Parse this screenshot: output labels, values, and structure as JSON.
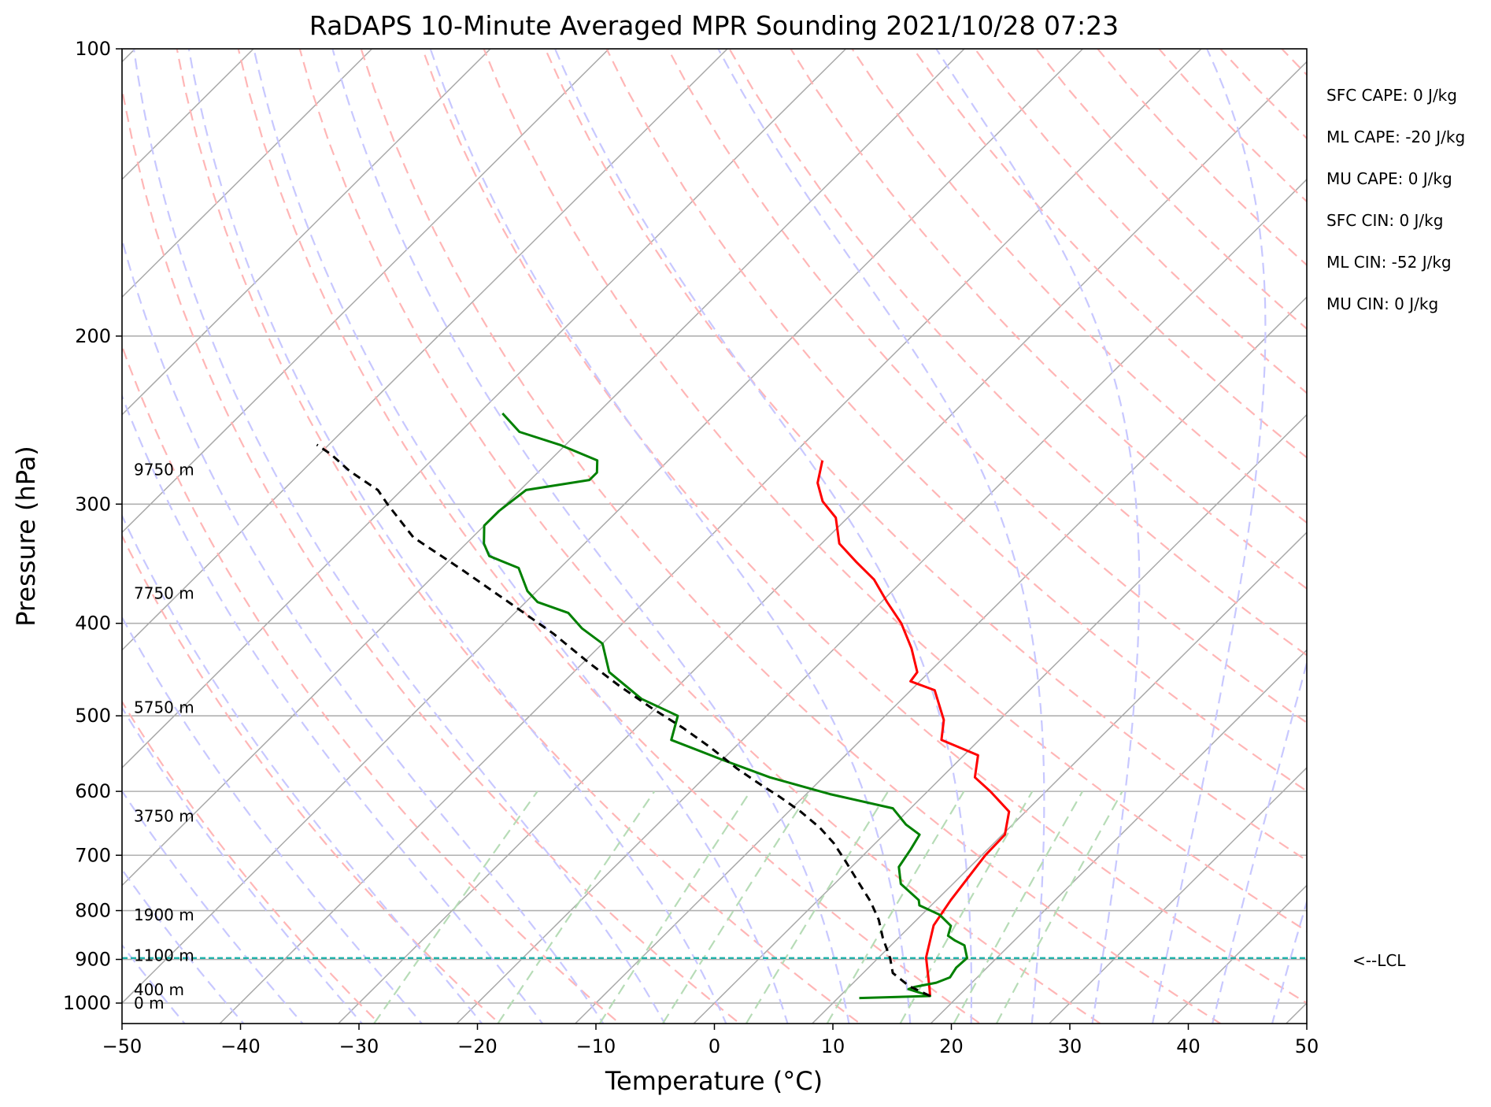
{
  "chart_data": {
    "type": "line",
    "title": "RaDAPS 10-Minute Averaged MPR Sounding 2021/10/28 07:23",
    "xlabel": "Temperature (°C)",
    "ylabel": "Pressure (hPa)",
    "xlim": [
      -50,
      50
    ],
    "ylim": [
      1050,
      100
    ],
    "y_scale": "log",
    "skew": "skew-T",
    "x_ticks": [
      "−50",
      "−40",
      "−30",
      "−20",
      "−10",
      "0",
      "10",
      "20",
      "30",
      "40",
      "50"
    ],
    "x_tick_values": [
      -50,
      -40,
      -30,
      -20,
      -10,
      0,
      10,
      20,
      30,
      40,
      50
    ],
    "y_ticks": [
      "100",
      "200",
      "300",
      "400",
      "500",
      "600",
      "700",
      "800",
      "900",
      "1000"
    ],
    "y_tick_values": [
      100,
      200,
      300,
      400,
      500,
      600,
      700,
      800,
      900,
      1000
    ],
    "grid": true,
    "height_labels": [
      {
        "label": "9750 m",
        "p": 276
      },
      {
        "label": "7750 m",
        "p": 372
      },
      {
        "label": "5750 m",
        "p": 490
      },
      {
        "label": "3750 m",
        "p": 637
      },
      {
        "label": "1900 m",
        "p": 808
      },
      {
        "label": "1100 m",
        "p": 891
      },
      {
        "label": "400 m",
        "p": 968
      },
      {
        "label": "0 m",
        "p": 1000
      }
    ],
    "stats": [
      "SFC CAPE: 0 J/kg",
      "ML CAPE: -20 J/kg",
      "MU CAPE: 0 J/kg",
      "SFC CIN: 0 J/kg",
      "ML CIN: -52 J/kg",
      "MU CIN: 0 J/kg"
    ],
    "lcl": {
      "label": "<--LCL",
      "p": 897
    },
    "series": [
      {
        "color": "#ff0000",
        "style": "solid",
        "points": [
          [
            17.6,
            983
          ],
          [
            16.7,
            960
          ],
          [
            14.0,
            896
          ],
          [
            11.9,
            829
          ],
          [
            11.2,
            780
          ],
          [
            10.3,
            700
          ],
          [
            10.2,
            666
          ],
          [
            8.6,
            630
          ],
          [
            5.3,
            600
          ],
          [
            2.8,
            580
          ],
          [
            1.2,
            550
          ],
          [
            -3.2,
            530
          ],
          [
            -4.7,
            505
          ],
          [
            -8.0,
            470
          ],
          [
            -10.8,
            460
          ],
          [
            -11.0,
            450
          ],
          [
            -13.5,
            425
          ],
          [
            -16.5,
            400
          ],
          [
            -19.5,
            380
          ],
          [
            -22.5,
            360
          ],
          [
            -25.5,
            345
          ],
          [
            -28.5,
            330
          ],
          [
            -31.0,
            310
          ],
          [
            -33.5,
            298
          ],
          [
            -35.5,
            285
          ],
          [
            -37.0,
            270
          ]
        ]
      },
      {
        "color": "#008000",
        "style": "solid",
        "points": [
          [
            11.8,
            988
          ],
          [
            17.6,
            983
          ],
          [
            15.2,
            967
          ],
          [
            15.5,
            962
          ],
          [
            17.0,
            952
          ],
          [
            17.7,
            940
          ],
          [
            17.4,
            918
          ],
          [
            17.5,
            897
          ],
          [
            16.2,
            870
          ],
          [
            15.0,
            860
          ],
          [
            14.0,
            850
          ],
          [
            13.4,
            830
          ],
          [
            11.5,
            808
          ],
          [
            9.0,
            790
          ],
          [
            8.5,
            780
          ],
          [
            5.6,
            750
          ],
          [
            4.0,
            720
          ],
          [
            3.5,
            690
          ],
          [
            3.0,
            666
          ],
          [
            1.0,
            650
          ],
          [
            -1.5,
            625
          ],
          [
            -8.0,
            604
          ],
          [
            -14.5,
            580
          ],
          [
            -20.0,
            556
          ],
          [
            -26.0,
            530
          ],
          [
            -27.5,
            500
          ],
          [
            -32.0,
            480
          ],
          [
            -37.0,
            450
          ],
          [
            -40.0,
            420
          ],
          [
            -43.0,
            405
          ],
          [
            -45.5,
            390
          ],
          [
            -49.0,
            380
          ],
          [
            -50.8,
            370
          ],
          [
            -53.5,
            350
          ],
          [
            -57.0,
            340
          ],
          [
            -58.5,
            330
          ],
          [
            -60.0,
            316
          ],
          [
            -60.0,
            305
          ],
          [
            -59.5,
            290
          ],
          [
            -55.0,
            283
          ],
          [
            -55.0,
            278
          ],
          [
            -56.0,
            270
          ],
          [
            -60.5,
            260
          ],
          [
            -65.0,
            252
          ],
          [
            -68.0,
            241
          ]
        ]
      },
      {
        "color": "#000000",
        "style": "dashed",
        "points": [
          [
            17.6,
            983
          ],
          [
            15.0,
            960
          ],
          [
            12.5,
            930
          ],
          [
            11.0,
            897
          ],
          [
            8.7,
            855
          ],
          [
            6.8,
            818
          ],
          [
            4.5,
            782
          ],
          [
            1.5,
            742
          ],
          [
            -1.0,
            710
          ],
          [
            -3.5,
            680
          ],
          [
            -6.0,
            655
          ],
          [
            -9.0,
            630
          ],
          [
            -12.0,
            608
          ],
          [
            -15.0,
            588
          ],
          [
            -18.0,
            568
          ],
          [
            -22.0,
            540
          ],
          [
            -26.0,
            515
          ],
          [
            -30.5,
            490
          ],
          [
            -35.0,
            465
          ],
          [
            -39.5,
            440
          ],
          [
            -45.0,
            410
          ],
          [
            -51.0,
            382
          ],
          [
            -58.0,
            352
          ],
          [
            -65.0,
            325
          ],
          [
            -70.0,
            300
          ],
          [
            -72.0,
            290
          ],
          [
            -76.0,
            277
          ],
          [
            -79.0,
            266
          ],
          [
            -81.0,
            260
          ]
        ]
      }
    ]
  }
}
